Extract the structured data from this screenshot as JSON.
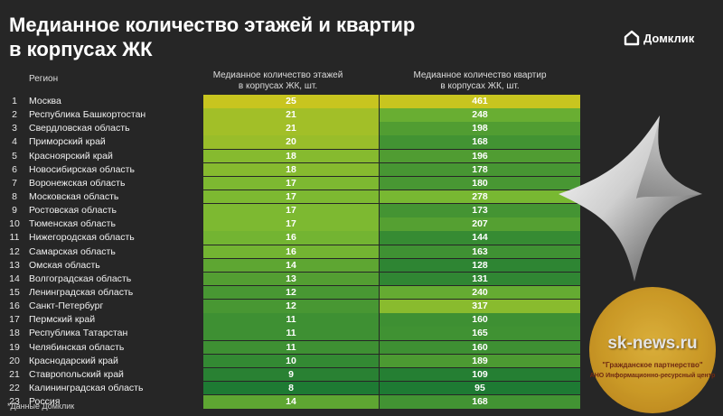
{
  "title": {
    "line1": "Медианное количество этажей и квартир",
    "line2": "в корпусах ЖК"
  },
  "logo": {
    "text": "Домклик",
    "icon": "house-icon"
  },
  "headers": {
    "region": "Регион",
    "floors_line1": "Медианное количество этажей",
    "floors_line2": "в корпусах ЖК, шт.",
    "apts_line1": "Медианное количество квартир",
    "apts_line2": "в корпусах ЖК, шт."
  },
  "rows": [
    {
      "n": "1",
      "region": "Москва",
      "floors": "25",
      "apartments": "461"
    },
    {
      "n": "2",
      "region": "Республика Башкортостан",
      "floors": "21",
      "apartments": "248"
    },
    {
      "n": "3",
      "region": "Свердловская область",
      "floors": "21",
      "apartments": "198"
    },
    {
      "n": "4",
      "region": "Приморский край",
      "floors": "20",
      "apartments": "168"
    },
    {
      "n": "5",
      "region": "Красноярский край",
      "floors": "18",
      "apartments": "196"
    },
    {
      "n": "6",
      "region": "Новосибирская область",
      "floors": "18",
      "apartments": "178"
    },
    {
      "n": "7",
      "region": "Воронежская область",
      "floors": "17",
      "apartments": "180"
    },
    {
      "n": "8",
      "region": "Московская область",
      "floors": "17",
      "apartments": "278"
    },
    {
      "n": "9",
      "region": "Ростовская область",
      "floors": "17",
      "apartments": "173"
    },
    {
      "n": "10",
      "region": "Тюменская область",
      "floors": "17",
      "apartments": "207"
    },
    {
      "n": "11",
      "region": "Нижегородская область",
      "floors": "16",
      "apartments": "144"
    },
    {
      "n": "12",
      "region": "Самарская область",
      "floors": "16",
      "apartments": "163"
    },
    {
      "n": "13",
      "region": "Омская область",
      "floors": "14",
      "apartments": "128"
    },
    {
      "n": "14",
      "region": "Волгоградская область",
      "floors": "13",
      "apartments": "131"
    },
    {
      "n": "15",
      "region": "Ленинградская область",
      "floors": "12",
      "apartments": "240"
    },
    {
      "n": "16",
      "region": "Санкт-Петербург",
      "floors": "12",
      "apartments": "317"
    },
    {
      "n": "17",
      "region": "Пермский край",
      "floors": "11",
      "apartments": "160"
    },
    {
      "n": "18",
      "region": "Республика Татарстан",
      "floors": "11",
      "apartments": "165"
    },
    {
      "n": "19",
      "region": "Челябинская область",
      "floors": "11",
      "apartments": "160"
    },
    {
      "n": "20",
      "region": "Краснодарский край",
      "floors": "10",
      "apartments": "189"
    },
    {
      "n": "21",
      "region": "Ставропольский край",
      "floors": "9",
      "apartments": "109"
    },
    {
      "n": "22",
      "region": "Калининградская область",
      "floors": "8",
      "apartments": "95"
    },
    {
      "n": "23",
      "region": "Россия",
      "floors": "14",
      "apartments": "168"
    }
  ],
  "footnote": "*Данные Домклик",
  "watermark": {
    "site": "sk-news.ru",
    "line2": "\"Гражданское партнерство\"",
    "line3": "АНО Информационно-ресурсный центр"
  },
  "colors": {
    "background": "#262626",
    "heat_high": "#c8c51f",
    "heat_low": "#1e7a33"
  }
}
